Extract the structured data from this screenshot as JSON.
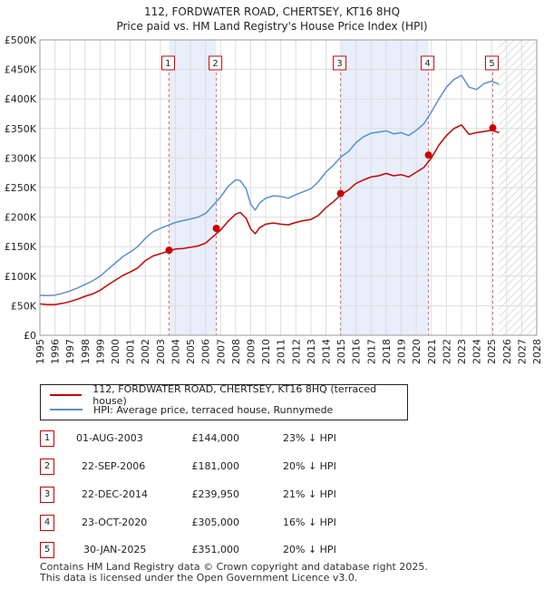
{
  "chart_data": {
    "type": "line",
    "title": "112, FORDWATER ROAD, CHERTSEY, KT16 8HQ",
    "subtitle": "Price paid vs. HM Land Registry's House Price Index (HPI)",
    "xlim": [
      1995,
      2028
    ],
    "ylim": [
      0,
      500000
    ],
    "x_ticks": [
      "1995",
      "1996",
      "1997",
      "1998",
      "1999",
      "2000",
      "2001",
      "2002",
      "2003",
      "2004",
      "2005",
      "2006",
      "2007",
      "2008",
      "2009",
      "2010",
      "2011",
      "2012",
      "2013",
      "2014",
      "2015",
      "2016",
      "2017",
      "2018",
      "2019",
      "2020",
      "2021",
      "2022",
      "2023",
      "2024",
      "2025",
      "2026",
      "2027",
      "2028"
    ],
    "y_ticks": [
      {
        "value": 0,
        "label": "£0"
      },
      {
        "value": 50000,
        "label": "£50K"
      },
      {
        "value": 100000,
        "label": "£100K"
      },
      {
        "value": 150000,
        "label": "£150K"
      },
      {
        "value": 200000,
        "label": "£200K"
      },
      {
        "value": 250000,
        "label": "£250K"
      },
      {
        "value": 300000,
        "label": "£300K"
      },
      {
        "value": 350000,
        "label": "£350K"
      },
      {
        "value": 400000,
        "label": "£400K"
      },
      {
        "value": 450000,
        "label": "£450K"
      },
      {
        "value": 500000,
        "label": "£500K"
      }
    ],
    "grid": true,
    "forecast_from": 2025.5,
    "series": [
      {
        "name": "112, FORDWATER ROAD, CHERTSEY, KT16 8HQ (terraced house)",
        "color": "#cc0000",
        "x": [
          1995,
          1995.5,
          1996,
          1996.5,
          1997,
          1997.5,
          1998,
          1998.5,
          1999,
          1999.5,
          2000,
          2000.5,
          2001,
          2001.5,
          2002,
          2002.5,
          2003,
          2003.5,
          2004,
          2004.5,
          2005,
          2005.5,
          2006,
          2006.5,
          2007,
          2007.5,
          2008,
          2008.3,
          2008.7,
          2009,
          2009.3,
          2009.6,
          2010,
          2010.5,
          2011,
          2011.5,
          2012,
          2012.5,
          2013,
          2013.5,
          2014,
          2014.5,
          2015,
          2015.5,
          2016,
          2016.5,
          2017,
          2017.5,
          2018,
          2018.5,
          2019,
          2019.5,
          2020,
          2020.5,
          2021,
          2021.5,
          2022,
          2022.5,
          2023,
          2023.5,
          2024,
          2024.5,
          2025,
          2025.5
        ],
        "values": [
          53000,
          52000,
          52000,
          54000,
          57000,
          61000,
          66000,
          70000,
          76000,
          85000,
          93000,
          101000,
          107000,
          114000,
          126000,
          134000,
          138000,
          142000,
          146000,
          147000,
          149000,
          151000,
          156000,
          167000,
          178000,
          193000,
          205000,
          208000,
          198000,
          180000,
          172000,
          182000,
          188000,
          190000,
          188000,
          187000,
          191000,
          194000,
          196000,
          203000,
          216000,
          226000,
          238000,
          246000,
          257000,
          263000,
          268000,
          270000,
          274000,
          270000,
          272000,
          268000,
          276000,
          284000,
          300000,
          322000,
          338000,
          350000,
          356000,
          340000,
          343000,
          345000,
          347000,
          343000
        ]
      },
      {
        "name": "HPI: Average price, terraced house, Runnymede",
        "color": "#5b8fd1",
        "x": [
          1995,
          1995.5,
          1996,
          1996.5,
          1997,
          1997.5,
          1998,
          1998.5,
          1999,
          1999.5,
          2000,
          2000.5,
          2001,
          2001.5,
          2002,
          2002.5,
          2003,
          2003.5,
          2004,
          2004.5,
          2005,
          2005.5,
          2006,
          2006.5,
          2007,
          2007.5,
          2008,
          2008.3,
          2008.7,
          2009,
          2009.3,
          2009.6,
          2010,
          2010.5,
          2011,
          2011.5,
          2012,
          2012.5,
          2013,
          2013.5,
          2014,
          2014.5,
          2015,
          2015.5,
          2016,
          2016.5,
          2017,
          2017.5,
          2018,
          2018.5,
          2019,
          2019.5,
          2020,
          2020.5,
          2021,
          2021.5,
          2022,
          2022.5,
          2023,
          2023.5,
          2024,
          2024.5,
          2025,
          2025.5
        ],
        "values": [
          68000,
          67000,
          68000,
          71000,
          75000,
          80000,
          86000,
          92000,
          100000,
          111000,
          122000,
          133000,
          141000,
          150000,
          164000,
          175000,
          181000,
          186000,
          191000,
          194000,
          197000,
          200000,
          206000,
          220000,
          234000,
          252000,
          263000,
          262000,
          248000,
          222000,
          212000,
          224000,
          232000,
          236000,
          235000,
          232000,
          238000,
          243000,
          248000,
          260000,
          276000,
          288000,
          302000,
          311000,
          326000,
          336000,
          342000,
          344000,
          346000,
          341000,
          343000,
          338000,
          347000,
          358000,
          378000,
          400000,
          420000,
          433000,
          440000,
          420000,
          416000,
          426000,
          430000,
          425000
        ]
      }
    ],
    "sales": [
      {
        "label": "1",
        "x": 2003.58,
        "price": 144000,
        "date": "01-AUG-2003",
        "price_text": "£144,000",
        "hpi": "23% ↓ HPI"
      },
      {
        "label": "2",
        "x": 2006.72,
        "price": 181000,
        "date": "22-SEP-2006",
        "price_text": "£181,000",
        "hpi": "20% ↓ HPI"
      },
      {
        "label": "3",
        "x": 2014.97,
        "price": 239950,
        "date": "22-DEC-2014",
        "price_text": "£239,950",
        "hpi": "21% ↓ HPI"
      },
      {
        "label": "4",
        "x": 2020.81,
        "price": 305000,
        "date": "23-OCT-2020",
        "price_text": "£305,000",
        "hpi": "16% ↓ HPI"
      },
      {
        "label": "5",
        "x": 2025.08,
        "price": 351000,
        "date": "30-JAN-2025",
        "price_text": "£351,000",
        "hpi": "20% ↓ HPI"
      }
    ],
    "highlight_spans": [
      [
        2003.58,
        2006.72
      ],
      [
        2014.97,
        2020.81
      ]
    ]
  },
  "footer": {
    "line1": "Contains HM Land Registry data © Crown copyright and database right 2025.",
    "line2": "This data is licensed under the Open Government Licence v3.0."
  }
}
